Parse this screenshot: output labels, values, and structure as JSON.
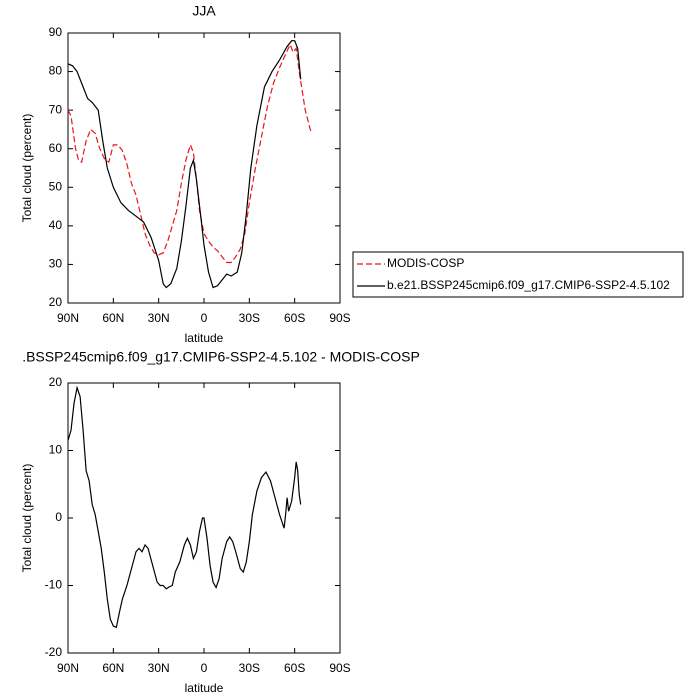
{
  "chart_data": [
    {
      "type": "line",
      "title": "JJA",
      "xlabel": "latitude",
      "ylabel": "Total cloud (percent)",
      "xlim": [
        90,
        -90
      ],
      "ylim": [
        20,
        90
      ],
      "xticks": [
        {
          "value": 90,
          "label": "90N"
        },
        {
          "value": 60,
          "label": "60N"
        },
        {
          "value": 30,
          "label": "30N"
        },
        0,
        {
          "value": -30,
          "label": "30S"
        },
        {
          "value": -60,
          "label": "60S"
        },
        {
          "value": -90,
          "label": "90S"
        }
      ],
      "yticks": [
        20,
        30,
        40,
        50,
        60,
        70,
        80,
        90
      ],
      "series": [
        {
          "name": "MODIS-COSP",
          "color": "#e8161b",
          "dashed": true,
          "x": [
            90,
            88,
            85,
            83,
            81,
            78,
            75,
            72,
            69,
            66,
            63,
            60,
            57,
            54,
            51,
            48,
            45,
            42,
            39,
            36,
            33,
            30,
            27,
            24,
            21,
            18,
            15,
            12,
            9,
            7,
            5,
            3,
            0,
            -3,
            -6,
            -9,
            -12,
            -15,
            -18,
            -21,
            -24,
            -27,
            -30,
            -34,
            -38,
            -42,
            -46,
            -50,
            -54,
            -57,
            -59,
            -61,
            -63,
            -65,
            -67,
            -69,
            -71
          ],
          "values": [
            70,
            68.5,
            60,
            57,
            56.5,
            62,
            65,
            64,
            60,
            57.5,
            56.5,
            61,
            61,
            59.5,
            56,
            51,
            48,
            43,
            38,
            35,
            33,
            32.5,
            33,
            36,
            40,
            44,
            51,
            57,
            61,
            59,
            52,
            44,
            38,
            36,
            34.5,
            33.5,
            32,
            30.5,
            30.5,
            32,
            34,
            38,
            46,
            55,
            63,
            71,
            77,
            81,
            84.5,
            87,
            85,
            86,
            80,
            75,
            70,
            67,
            64
          ]
        },
        {
          "name": "b.e21.BSSP245cmip6.f09_g17.CMIP6-SSP2-4.5.102",
          "color": "#000000",
          "dashed": false,
          "x": [
            90,
            87,
            84,
            80,
            77,
            74,
            70,
            67,
            64,
            60,
            55,
            50,
            45,
            40,
            35,
            30,
            27,
            25,
            22,
            18,
            15,
            12,
            9,
            7,
            5,
            2,
            0,
            -3,
            -6,
            -9,
            -12,
            -15,
            -18,
            -22,
            -25,
            -28,
            -31,
            -35,
            -40,
            -45,
            -50,
            -55,
            -58,
            -60,
            -62,
            -64
          ],
          "values": [
            82,
            81.5,
            80,
            76,
            73,
            72,
            70,
            62,
            55,
            50,
            46,
            44,
            42.5,
            41,
            37,
            31,
            25,
            24,
            25,
            29,
            36,
            45,
            55,
            57,
            52,
            42,
            35,
            28,
            24,
            24.5,
            26,
            27.5,
            27,
            28,
            33,
            43,
            55,
            66,
            76,
            80,
            83,
            86.5,
            88,
            88,
            86,
            78
          ]
        }
      ]
    },
    {
      "type": "line",
      "title": ".BSSP245cmip6.f09_g17.CMIP6-SSP2-4.5.102 - MODIS-COSP",
      "xlabel": "latitude",
      "ylabel": "Total cloud (percent)",
      "xlim": [
        90,
        -90
      ],
      "ylim": [
        -20,
        20
      ],
      "xticks": [
        {
          "value": 90,
          "label": "90N"
        },
        {
          "value": 60,
          "label": "60N"
        },
        {
          "value": 30,
          "label": "30N"
        },
        0,
        {
          "value": -30,
          "label": "30S"
        },
        {
          "value": -60,
          "label": "60S"
        },
        {
          "value": -90,
          "label": "90S"
        }
      ],
      "yticks": [
        -20,
        -10,
        0,
        10,
        20
      ],
      "series": [
        {
          "color": "#000000",
          "dashed": false,
          "x": [
            90,
            88,
            86,
            84,
            82,
            80,
            78,
            76,
            74,
            72,
            70,
            68,
            66,
            64,
            62,
            60,
            58,
            56,
            54,
            51,
            48,
            45,
            43,
            41,
            39,
            37,
            34,
            31,
            29,
            27,
            25,
            23,
            21,
            19,
            16,
            13,
            11,
            9,
            7,
            5,
            3,
            1,
            0,
            -2,
            -4,
            -6,
            -8,
            -10,
            -12,
            -15,
            -17,
            -19,
            -21,
            -24,
            -26,
            -28,
            -30,
            -32,
            -35,
            -38,
            -41,
            -44,
            -47,
            -50,
            -53,
            -54,
            -55,
            -56,
            -58,
            -60,
            -61,
            -62,
            -63,
            -64
          ],
          "values": [
            11.5,
            13,
            17,
            19.3,
            18,
            13,
            7,
            5.5,
            2,
            0.5,
            -2,
            -4.5,
            -8,
            -12,
            -15,
            -16,
            -16.2,
            -14,
            -12,
            -10,
            -7.5,
            -5,
            -4.5,
            -5,
            -4,
            -4.5,
            -7,
            -9.5,
            -10,
            -10,
            -10.5,
            -10.2,
            -10,
            -8,
            -6.5,
            -4,
            -3,
            -4,
            -6,
            -5,
            -2,
            0,
            0,
            -3,
            -7,
            -9.5,
            -10.3,
            -9,
            -6,
            -3.5,
            -2.8,
            -3.5,
            -5,
            -7.5,
            -8,
            -6.5,
            -3.5,
            0.5,
            4,
            6,
            6.8,
            5.5,
            3,
            0.5,
            -1.5,
            0.5,
            3,
            1,
            2.5,
            6,
            8.3,
            7,
            3.5,
            2
          ]
        }
      ]
    }
  ]
}
